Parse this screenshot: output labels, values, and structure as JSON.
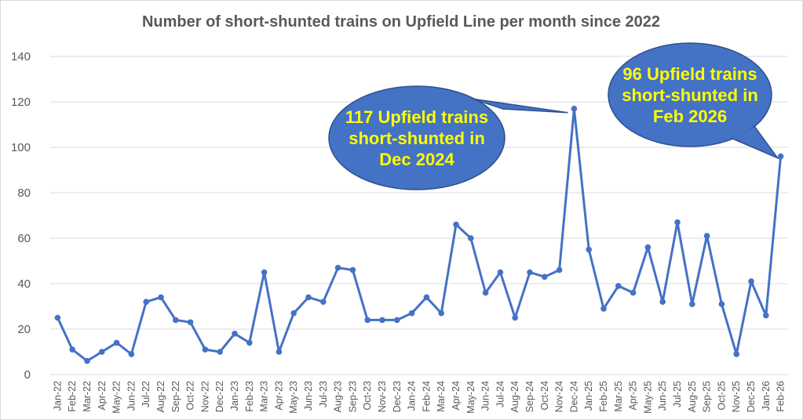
{
  "chart_data": {
    "type": "line",
    "title": "Number of short-shunted trains on Upfield Line per month since 2022",
    "xlabel": "",
    "ylabel": "",
    "ylim": [
      0,
      140
    ],
    "yticks": [
      0,
      20,
      40,
      60,
      80,
      100,
      120,
      140
    ],
    "grid": true,
    "legend": "none",
    "categories": [
      "Jan-22",
      "Feb-22",
      "Mar-22",
      "Apr-22",
      "May-22",
      "Jun-22",
      "Jul-22",
      "Aug-22",
      "Sep-22",
      "Oct-22",
      "Nov-22",
      "Dec-22",
      "Jan-23",
      "Feb-23",
      "Mar-23",
      "Apr-23",
      "May-23",
      "Jun-23",
      "Jul-23",
      "Aug-23",
      "Sep-23",
      "Oct-23",
      "Nov-23",
      "Dec-23",
      "Jan-24",
      "Feb-24",
      "Mar-24",
      "Apr-24",
      "May-24",
      "Jun-24",
      "Jul-24",
      "Aug-24",
      "Sep-24",
      "Oct-24",
      "Nov-24",
      "Dec-24",
      "Jan-25",
      "Feb-25",
      "Mar-25",
      "Apr-25",
      "May-25",
      "Jun-25",
      "Jul-25",
      "Aug-25",
      "Sep-25",
      "Oct-25",
      "Nov-25",
      "Dec-25",
      "Jan-26",
      "Feb-26"
    ],
    "series": [
      {
        "color": "#4472c4",
        "values": [
          25,
          11,
          6,
          10,
          14,
          9,
          32,
          34,
          24,
          23,
          11,
          10,
          18,
          14,
          45,
          10,
          27,
          34,
          32,
          47,
          46,
          24,
          24,
          24,
          27,
          34,
          27,
          66,
          60,
          36,
          45,
          25,
          45,
          43,
          46,
          117,
          55,
          29,
          39,
          36,
          56,
          32,
          67,
          31,
          61,
          31,
          9,
          41,
          26,
          96
        ]
      }
    ],
    "annotations": [
      {
        "lines": [
          "117 Upfield trains",
          "short-shunted in",
          "Dec 2024"
        ],
        "target": "Dec-24",
        "value": 117,
        "fill": "#4472c4",
        "text_color": "#ffff00"
      },
      {
        "lines": [
          "96 Upfield trains",
          "short-shunted in",
          "Feb 2026"
        ],
        "target": "Feb-26",
        "value": 96,
        "fill": "#4472c4",
        "text_color": "#ffff00"
      }
    ]
  },
  "colors": {
    "gridline": "#d9d9d9",
    "text": "#595959",
    "line": "#4472c4",
    "callout_border": "#2f528f"
  }
}
